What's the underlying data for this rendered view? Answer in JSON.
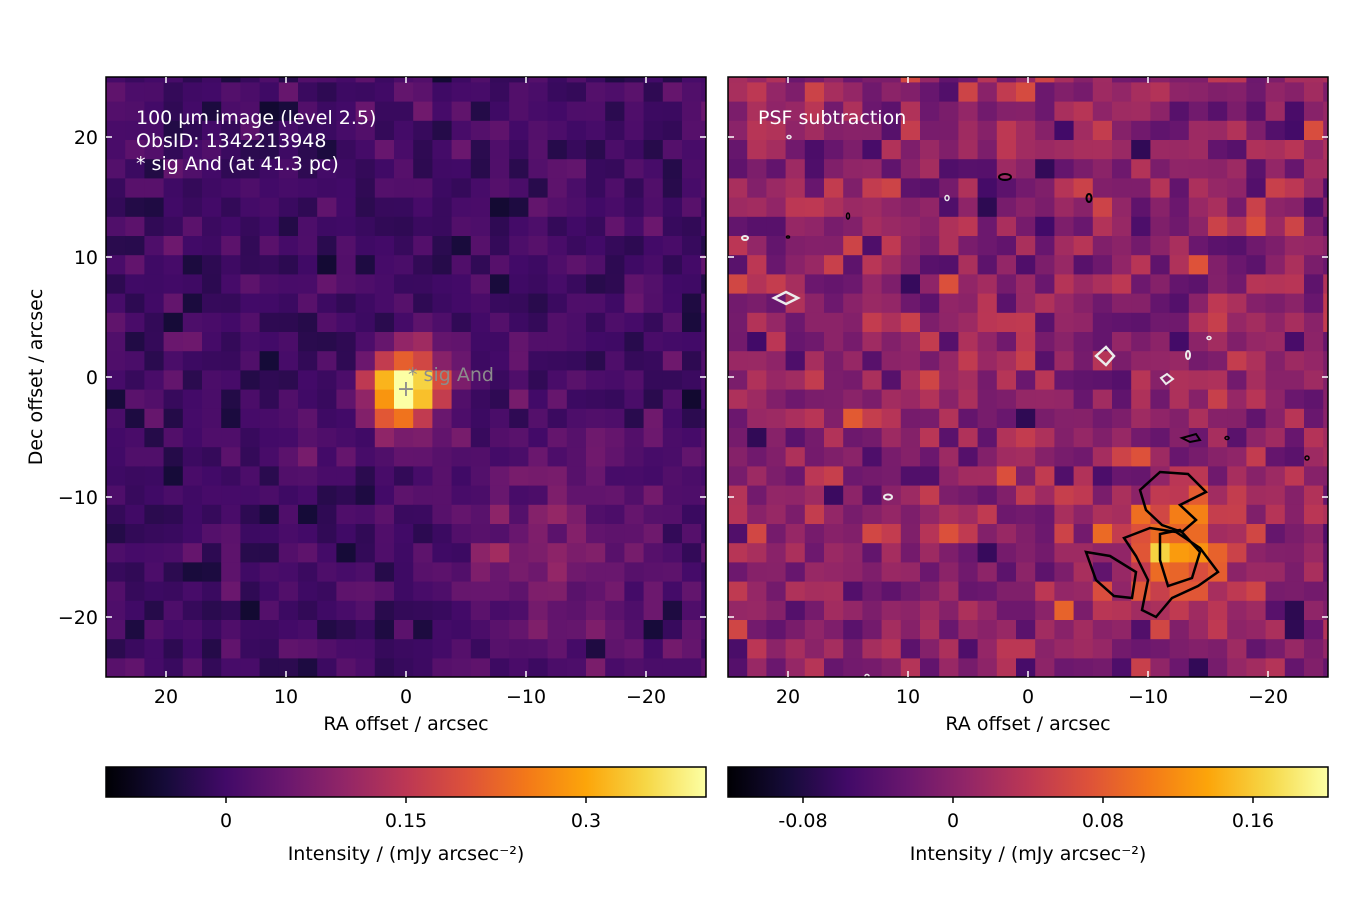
{
  "chart_data": [
    {
      "type": "heatmap",
      "panel": "left",
      "annotation_lines": [
        "100 µm image (level 2.5)",
        "ObsID: 1342213948",
        "* sig And (at 41.3 pc)"
      ],
      "target_label": "* sig And",
      "target_marker": {
        "symbol": "+",
        "ra_offset": 0,
        "dec_offset": -1
      },
      "xlabel": "RA offset / arcsec",
      "ylabel": "Dec offset / arcsec",
      "xlim": [
        25,
        -25
      ],
      "ylim": [
        -25,
        25
      ],
      "xticks": [
        20,
        10,
        0,
        -10,
        -20
      ],
      "xtick_labels": [
        "20",
        "10",
        "0",
        "−10",
        "−20"
      ],
      "yticks": [
        20,
        10,
        0,
        -10,
        -20
      ],
      "ytick_labels": [
        "20",
        "10",
        "0",
        "−10",
        "−20"
      ],
      "pixel_size_arcsec": 1.6,
      "colormap": "inferno",
      "colorbar": {
        "label": "Intensity / (mJy arcsec⁻²)",
        "vmin": -0.1,
        "vmax": 0.4,
        "ticks": [
          0,
          0.15,
          0.3
        ],
        "tick_labels": [
          "0",
          "0.15",
          "0.3"
        ]
      },
      "background_level": 0.0,
      "source": {
        "ra_offset": 0,
        "dec_offset": -1,
        "peak": 0.4
      }
    },
    {
      "type": "heatmap",
      "panel": "right",
      "annotation_lines": [
        "PSF subtraction"
      ],
      "xlabel": "RA offset / arcsec",
      "xlim": [
        25,
        -25
      ],
      "ylim": [
        -25,
        25
      ],
      "xticks": [
        20,
        10,
        0,
        -10,
        -20
      ],
      "xtick_labels": [
        "20",
        "10",
        "0",
        "−10",
        "−20"
      ],
      "pixel_size_arcsec": 1.6,
      "colormap": "inferno",
      "colorbar": {
        "label": "Intensity / (mJy arcsec⁻²)",
        "vmin": -0.12,
        "vmax": 0.2,
        "ticks": [
          -0.08,
          0,
          0.08,
          0.16
        ],
        "tick_labels": [
          "-0.08",
          "0",
          "0.08",
          "0.16"
        ]
      },
      "residual_blob": {
        "ra_offset": -12,
        "dec_offset": -14,
        "peak": 0.2
      }
    }
  ]
}
